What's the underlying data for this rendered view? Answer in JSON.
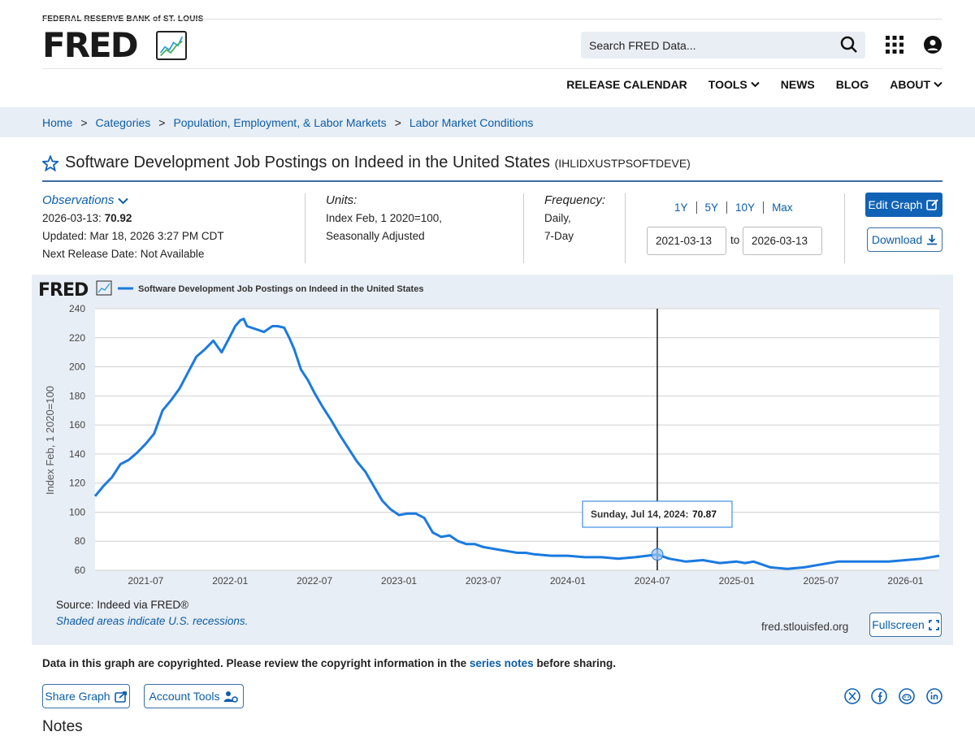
{
  "header": {
    "org": "FEDERAL RESERVE BANK of ST. LOUIS",
    "logo": "FRED",
    "search_placeholder": "Search FRED Data...",
    "nav": [
      {
        "label": "RELEASE CALENDAR",
        "dropdown": false
      },
      {
        "label": "TOOLS",
        "dropdown": true
      },
      {
        "label": "NEWS",
        "dropdown": false
      },
      {
        "label": "BLOG",
        "dropdown": false
      },
      {
        "label": "ABOUT",
        "dropdown": true
      }
    ]
  },
  "breadcrumb": [
    "Home",
    "Categories",
    "Population, Employment, & Labor Markets",
    "Labor Market Conditions"
  ],
  "series": {
    "title": "Software Development Job Postings on Indeed in the United States",
    "id": "(IHLIDXUSTPSOFTDEVE)"
  },
  "observations": {
    "label": "Observations",
    "date": "2026-03-13:",
    "value": "70.92",
    "updated": "Updated: Mar 18, 2026 3:27 PM CDT",
    "next_release": "Next Release Date: Not Available"
  },
  "units": {
    "label": "Units:",
    "line1": "Index Feb, 1 2020=100,",
    "line2": "Seasonally Adjusted"
  },
  "frequency": {
    "label": "Frequency:",
    "line1": "Daily,",
    "line2": "7-Day"
  },
  "range": {
    "buttons": [
      "1Y",
      "5Y",
      "10Y",
      "Max"
    ],
    "from": "2021-03-13",
    "to_label": "to",
    "to": "2026-03-13"
  },
  "buttons": {
    "edit": "Edit Graph",
    "download": "Download",
    "fullscreen": "Fullscreen",
    "share": "Share Graph",
    "account": "Account Tools"
  },
  "graph": {
    "logo": "FRED",
    "source": "Source: Indeed via FRED®",
    "shaded_note": "Shaded areas indicate U.S. recessions.",
    "site": "fred.stlouisfed.org",
    "tooltip_date": "Sunday, Jul 14, 2024:",
    "tooltip_value": "70.87",
    "colors": {
      "line": "#1a7ae0",
      "background": "#e8eef5"
    }
  },
  "chart_data": {
    "type": "line",
    "title": "Software Development Job Postings on Indeed in the United States",
    "ylabel": "Index Feb, 1 2020=100",
    "xlabel": "",
    "ylim": [
      60,
      240
    ],
    "yticks": [
      60,
      80,
      100,
      120,
      140,
      160,
      180,
      200,
      220,
      240
    ],
    "xlim": [
      2021.2,
      2026.2
    ],
    "xticks": [
      {
        "label": "2021-07",
        "x": 2021.5
      },
      {
        "label": "2022-01",
        "x": 2022.0
      },
      {
        "label": "2022-07",
        "x": 2022.5
      },
      {
        "label": "2023-01",
        "x": 2023.0
      },
      {
        "label": "2023-07",
        "x": 2023.5
      },
      {
        "label": "2024-01",
        "x": 2024.0
      },
      {
        "label": "2024-07",
        "x": 2024.5
      },
      {
        "label": "2025-01",
        "x": 2025.0
      },
      {
        "label": "2025-07",
        "x": 2025.5
      },
      {
        "label": "2026-01",
        "x": 2026.0
      }
    ],
    "cursor_x": 2024.53,
    "series": [
      {
        "name": "Software Development Job Postings on Indeed in the United States",
        "x": [
          2021.2,
          2021.25,
          2021.3,
          2021.35,
          2021.4,
          2021.45,
          2021.5,
          2021.55,
          2021.6,
          2021.65,
          2021.7,
          2021.75,
          2021.8,
          2021.85,
          2021.9,
          2021.95,
          2022.0,
          2022.03,
          2022.06,
          2022.08,
          2022.1,
          2022.15,
          2022.2,
          2022.25,
          2022.28,
          2022.32,
          2022.35,
          2022.38,
          2022.42,
          2022.46,
          2022.5,
          2022.55,
          2022.6,
          2022.65,
          2022.7,
          2022.75,
          2022.8,
          2022.85,
          2022.9,
          2022.95,
          2023.0,
          2023.05,
          2023.1,
          2023.15,
          2023.2,
          2023.25,
          2023.3,
          2023.35,
          2023.4,
          2023.45,
          2023.5,
          2023.55,
          2023.6,
          2023.65,
          2023.7,
          2023.75,
          2023.8,
          2023.9,
          2024.0,
          2024.1,
          2024.2,
          2024.3,
          2024.4,
          2024.53,
          2024.6,
          2024.7,
          2024.8,
          2024.9,
          2025.0,
          2025.05,
          2025.1,
          2025.15,
          2025.2,
          2025.3,
          2025.4,
          2025.5,
          2025.6,
          2025.7,
          2025.8,
          2025.9,
          2026.0,
          2026.1,
          2026.2
        ],
        "y": [
          111,
          118,
          124,
          133,
          136,
          141,
          147,
          154,
          170,
          177,
          185,
          196,
          207,
          212,
          218,
          210,
          221,
          228,
          232,
          233,
          228,
          226,
          224,
          228,
          228,
          227,
          220,
          212,
          198,
          191,
          182,
          172,
          163,
          153,
          144,
          135,
          128,
          118,
          108,
          102,
          98,
          99,
          99,
          96,
          86,
          83,
          84,
          80,
          78,
          78,
          76,
          75,
          74,
          73,
          72,
          72,
          71,
          70,
          70,
          69,
          69,
          68,
          69,
          70.87,
          68,
          66,
          67,
          65,
          66,
          65,
          66,
          64,
          62,
          61,
          62,
          64,
          66,
          66,
          66,
          66,
          67,
          68,
          70
        ]
      }
    ]
  },
  "footer": {
    "copyright_pre": "Data in this graph are copyrighted. Please review the copyright information in the",
    "copyright_link": "series notes",
    "copyright_post": "before sharing.",
    "notes_heading": "Notes"
  }
}
